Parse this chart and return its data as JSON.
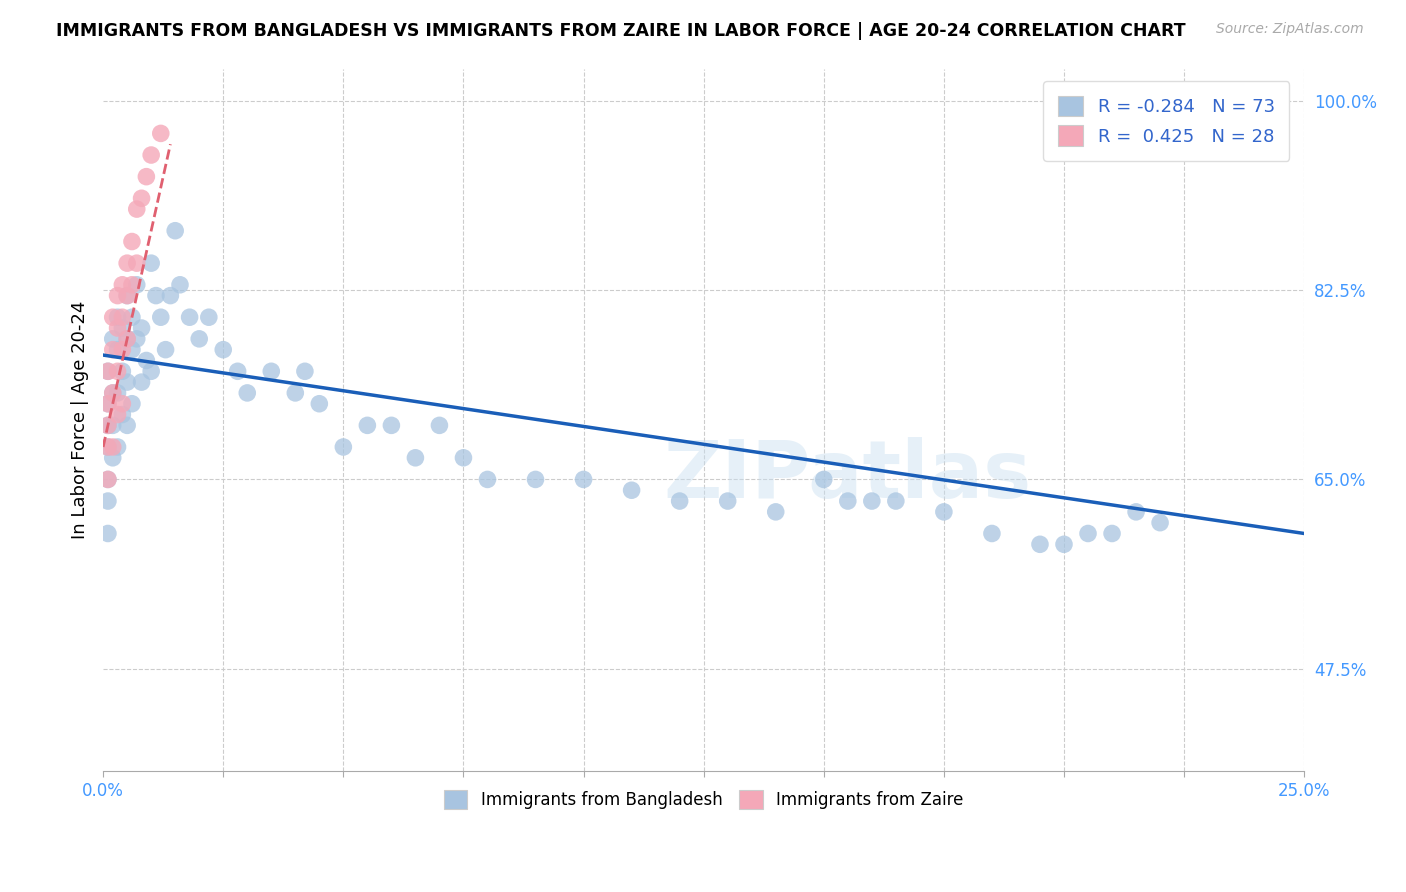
{
  "title": "IMMIGRANTS FROM BANGLADESH VS IMMIGRANTS FROM ZAIRE IN LABOR FORCE | AGE 20-24 CORRELATION CHART",
  "source": "Source: ZipAtlas.com",
  "ylabel": "In Labor Force | Age 20-24",
  "xlim": [
    0.0,
    0.25
  ],
  "ylim": [
    0.38,
    1.03
  ],
  "xticks": [
    0.0,
    0.025,
    0.05,
    0.075,
    0.1,
    0.125,
    0.15,
    0.175,
    0.2,
    0.225,
    0.25
  ],
  "xticklabels": [
    "0.0%",
    "",
    "",
    "",
    "",
    "",
    "",
    "",
    "",
    "",
    "25.0%"
  ],
  "yticks": [
    0.475,
    0.65,
    0.825,
    1.0
  ],
  "yticklabels": [
    "47.5%",
    "65.0%",
    "82.5%",
    "100.0%"
  ],
  "legend_r_bangladesh": "-0.284",
  "legend_n_bangladesh": "73",
  "legend_r_zaire": "0.425",
  "legend_n_zaire": "28",
  "bangladesh_color": "#a8c4e0",
  "zaire_color": "#f4a8b8",
  "trend_bangladesh_color": "#1a5eb8",
  "trend_zaire_color": "#e06070",
  "watermark": "ZIPatlas",
  "bd_x": [
    0.001,
    0.001,
    0.001,
    0.001,
    0.001,
    0.001,
    0.001,
    0.002,
    0.002,
    0.002,
    0.002,
    0.003,
    0.003,
    0.003,
    0.003,
    0.004,
    0.004,
    0.004,
    0.005,
    0.005,
    0.005,
    0.005,
    0.006,
    0.006,
    0.006,
    0.007,
    0.007,
    0.008,
    0.008,
    0.009,
    0.01,
    0.01,
    0.011,
    0.012,
    0.013,
    0.014,
    0.015,
    0.016,
    0.018,
    0.02,
    0.022,
    0.025,
    0.028,
    0.03,
    0.035,
    0.04,
    0.042,
    0.045,
    0.05,
    0.055,
    0.06,
    0.065,
    0.07,
    0.075,
    0.08,
    0.09,
    0.1,
    0.11,
    0.12,
    0.13,
    0.14,
    0.15,
    0.155,
    0.16,
    0.165,
    0.175,
    0.185,
    0.195,
    0.2,
    0.205,
    0.21,
    0.215,
    0.22
  ],
  "bd_y": [
    0.75,
    0.72,
    0.7,
    0.68,
    0.65,
    0.63,
    0.6,
    0.78,
    0.73,
    0.7,
    0.67,
    0.8,
    0.77,
    0.73,
    0.68,
    0.79,
    0.75,
    0.71,
    0.82,
    0.78,
    0.74,
    0.7,
    0.8,
    0.77,
    0.72,
    0.83,
    0.78,
    0.79,
    0.74,
    0.76,
    0.85,
    0.75,
    0.82,
    0.8,
    0.77,
    0.82,
    0.88,
    0.83,
    0.8,
    0.78,
    0.8,
    0.77,
    0.75,
    0.73,
    0.75,
    0.73,
    0.75,
    0.72,
    0.68,
    0.7,
    0.7,
    0.67,
    0.7,
    0.67,
    0.65,
    0.65,
    0.65,
    0.64,
    0.63,
    0.63,
    0.62,
    0.65,
    0.63,
    0.63,
    0.63,
    0.62,
    0.6,
    0.59,
    0.59,
    0.6,
    0.6,
    0.62,
    0.61
  ],
  "zr_x": [
    0.001,
    0.001,
    0.001,
    0.001,
    0.001,
    0.002,
    0.002,
    0.002,
    0.002,
    0.003,
    0.003,
    0.003,
    0.003,
    0.004,
    0.004,
    0.004,
    0.004,
    0.005,
    0.005,
    0.005,
    0.006,
    0.006,
    0.007,
    0.007,
    0.008,
    0.009,
    0.01,
    0.012
  ],
  "zr_y": [
    0.75,
    0.72,
    0.7,
    0.68,
    0.65,
    0.8,
    0.77,
    0.73,
    0.68,
    0.82,
    0.79,
    0.75,
    0.71,
    0.83,
    0.8,
    0.77,
    0.72,
    0.85,
    0.82,
    0.78,
    0.87,
    0.83,
    0.9,
    0.85,
    0.91,
    0.93,
    0.95,
    0.97
  ],
  "bd_trend_x0": 0.0,
  "bd_trend_x1": 0.25,
  "bd_trend_y0": 0.765,
  "bd_trend_y1": 0.6,
  "zr_trend_x0": 0.0,
  "zr_trend_x1": 0.014,
  "zr_trend_y0": 0.68,
  "zr_trend_y1": 0.96
}
